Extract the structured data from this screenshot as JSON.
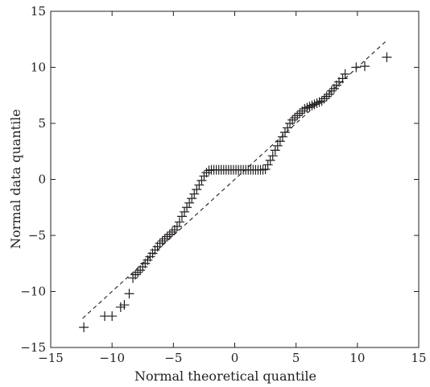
{
  "chart_data": {
    "type": "scatter",
    "title": "",
    "xlabel": "Normal theoretical quantile",
    "ylabel": "Normal data quantile",
    "xlim": [
      -15,
      15
    ],
    "ylim": [
      -15,
      15
    ],
    "xticks": [
      -15,
      -10,
      -5,
      0,
      5,
      10,
      15
    ],
    "yticks": [
      -15,
      -10,
      -5,
      0,
      5,
      10,
      15
    ],
    "x_tick_labels": [
      "−15",
      "−10",
      "−5",
      "0",
      "5",
      "10",
      "15"
    ],
    "y_tick_labels": [
      "−15",
      "−10",
      "−5",
      "0",
      "5",
      "10",
      "15"
    ],
    "grid": false,
    "marker": "plus",
    "color": "#231f20",
    "reference_line": {
      "style": "dashed",
      "x": [
        -12.4,
        12.4
      ],
      "y": [
        -12.4,
        12.4
      ]
    },
    "series": [
      {
        "x": [
          -12.3,
          -10.6,
          -10.0,
          -9.3,
          -9.0,
          -8.6,
          -8.3,
          -8.1,
          -7.9,
          -7.7,
          -7.5,
          -7.3,
          -7.1,
          -6.9,
          -6.7,
          -6.5,
          -6.3,
          -6.1,
          -5.9,
          -5.7,
          -5.5,
          -5.3,
          -5.1,
          -4.9,
          -4.7,
          -4.5,
          -4.3,
          -4.1,
          -3.9,
          -3.7,
          -3.5,
          -3.3,
          -3.1,
          -2.9,
          -2.7,
          -2.5,
          -2.3,
          -2.1,
          -1.9,
          -1.7,
          -1.5,
          -1.3,
          -1.1,
          -0.9,
          -0.7,
          -0.5,
          -0.3,
          -0.1,
          0.1,
          0.3,
          0.5,
          0.7,
          0.9,
          1.1,
          1.3,
          1.5,
          1.7,
          1.9,
          2.1,
          2.3,
          2.5,
          2.7,
          2.9,
          3.1,
          3.3,
          3.5,
          3.7,
          3.9,
          4.1,
          4.3,
          4.5,
          4.7,
          4.9,
          5.1,
          5.3,
          5.5,
          5.7,
          5.9,
          6.1,
          6.3,
          6.5,
          6.7,
          6.9,
          7.1,
          7.3,
          7.5,
          7.7,
          7.9,
          8.1,
          8.3,
          8.5,
          8.8,
          9.0,
          9.9,
          10.6,
          12.4
        ],
        "y": [
          -13.2,
          -12.2,
          -12.2,
          -11.4,
          -11.2,
          -10.2,
          -8.8,
          -8.5,
          -8.3,
          -8.1,
          -7.8,
          -7.5,
          -7.2,
          -6.9,
          -6.6,
          -6.3,
          -6.0,
          -5.7,
          -5.5,
          -5.3,
          -5.1,
          -4.9,
          -4.7,
          -4.5,
          -4.2,
          -3.8,
          -3.3,
          -2.9,
          -2.5,
          -2.1,
          -1.7,
          -1.3,
          -0.9,
          -0.5,
          -0.1,
          0.3,
          0.6,
          0.8,
          0.85,
          0.85,
          0.85,
          0.85,
          0.85,
          0.85,
          0.85,
          0.85,
          0.85,
          0.85,
          0.85,
          0.85,
          0.85,
          0.85,
          0.85,
          0.85,
          0.85,
          0.85,
          0.85,
          0.85,
          0.85,
          0.85,
          0.9,
          1.3,
          1.7,
          2.1,
          2.6,
          3.0,
          3.4,
          3.8,
          4.2,
          4.6,
          5.0,
          5.3,
          5.5,
          5.7,
          5.9,
          6.1,
          6.3,
          6.4,
          6.5,
          6.6,
          6.7,
          6.8,
          6.9,
          7.0,
          7.2,
          7.4,
          7.6,
          7.9,
          8.1,
          8.4,
          8.7,
          9.0,
          9.4,
          10.0,
          10.1,
          10.9
        ]
      }
    ]
  }
}
